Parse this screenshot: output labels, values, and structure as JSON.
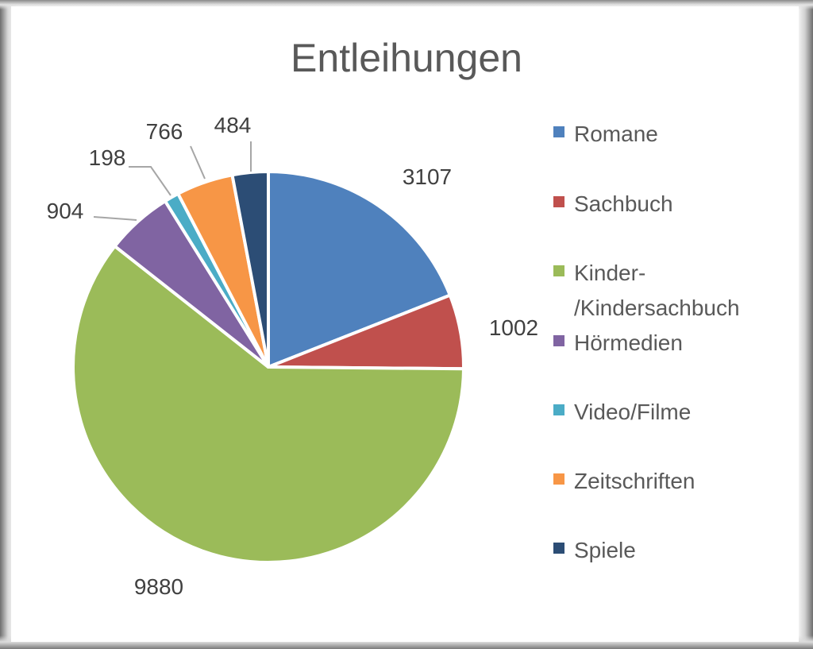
{
  "chart_data": {
    "type": "pie",
    "title": "Entleihungen",
    "categories": [
      "Romane",
      "Sachbuch",
      "Kinder-\n/Kindersachbuch",
      "Hörmedien",
      "Video/Filme",
      "Zeitschriften",
      "Spiele"
    ],
    "values": [
      3107,
      1002,
      9880,
      904,
      198,
      766,
      484
    ],
    "colors": [
      "#4F81BD",
      "#C0504D",
      "#9BBB59",
      "#8064A2",
      "#4BACC6",
      "#F79646",
      "#2C4D75"
    ],
    "data_labels": [
      "3107",
      "1002",
      "9880",
      "904",
      "198",
      "766",
      "484"
    ],
    "legend_position": "right",
    "start_angle": "12 o'clock",
    "direction": "clockwise"
  }
}
